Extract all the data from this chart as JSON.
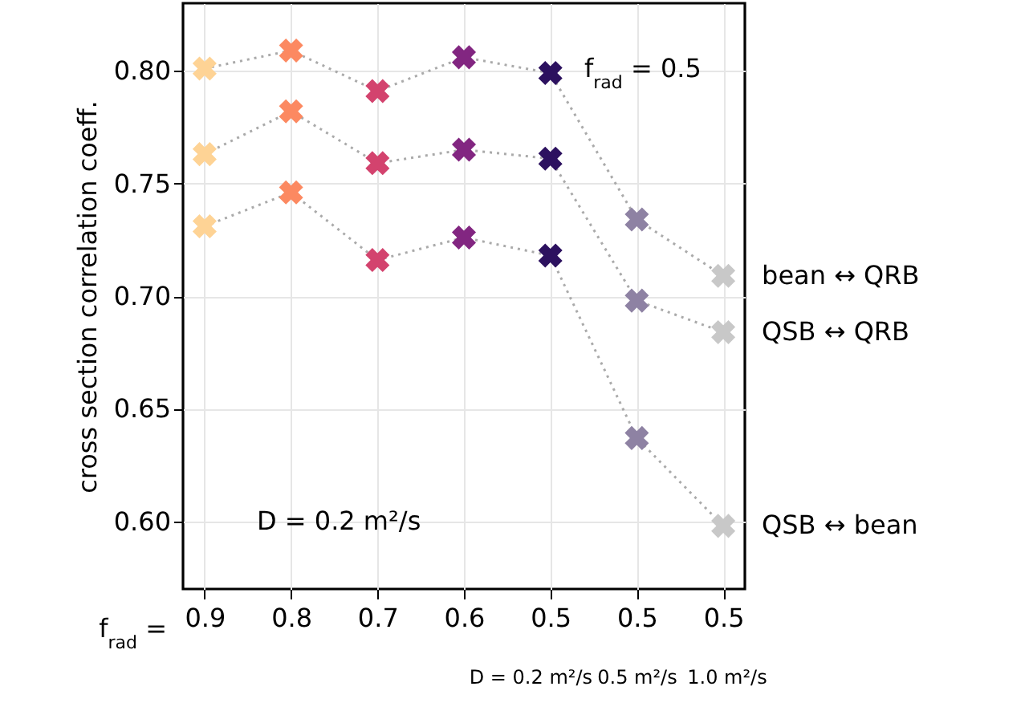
{
  "chart_data": {
    "type": "line",
    "ylabel": "cross section correlation coeff.",
    "categories": [
      "0.9",
      "0.8",
      "0.7",
      "0.6",
      "0.5",
      "0.5",
      "0.5"
    ],
    "ylim": [
      0.57,
      0.83
    ],
    "yticks": [
      {
        "value": 0.6,
        "label": "0.60"
      },
      {
        "value": 0.65,
        "label": "0.65"
      },
      {
        "value": 0.7,
        "label": "0.70"
      },
      {
        "value": 0.75,
        "label": "0.75"
      },
      {
        "value": 0.8,
        "label": "0.80"
      }
    ],
    "series": [
      {
        "name": "bean ↔ QRB",
        "color": "#aaaaaa",
        "colors": [
          "#fed395",
          "#fc8961",
          "#d3436e",
          "#822681",
          "#2c115f",
          "#8e82a3",
          "#c8c8c8"
        ],
        "values": [
          0.801,
          0.809,
          0.791,
          0.806,
          0.799,
          0.734,
          0.709
        ]
      },
      {
        "name": "QSB ↔ QRB",
        "color": "#aaaaaa",
        "colors": [
          "#fed395",
          "#fc8961",
          "#d3436e",
          "#822681",
          "#2c115f",
          "#8e82a3",
          "#c8c8c8"
        ],
        "values": [
          0.763,
          0.782,
          0.759,
          0.765,
          0.761,
          0.698,
          0.684
        ]
      },
      {
        "name": "QSB ↔ bean",
        "color": "#aaaaaa",
        "colors": [
          "#fed395",
          "#fc8961",
          "#d3436e",
          "#822681",
          "#2c115f",
          "#8e82a3",
          "#c8c8c8"
        ],
        "values": [
          0.731,
          0.746,
          0.716,
          0.726,
          0.718,
          0.637,
          0.598
        ]
      }
    ],
    "annotations": [
      "f$_{rad}$ = 0.5",
      "D = 0.2 m²/s",
      "f$_{rad}$ =",
      "D = 0.2 m²/s",
      "0.5 m²/s",
      "1.0 m²/s"
    ],
    "grid": true,
    "legend": false,
    "marker": "cross",
    "line_style": "dotted"
  }
}
